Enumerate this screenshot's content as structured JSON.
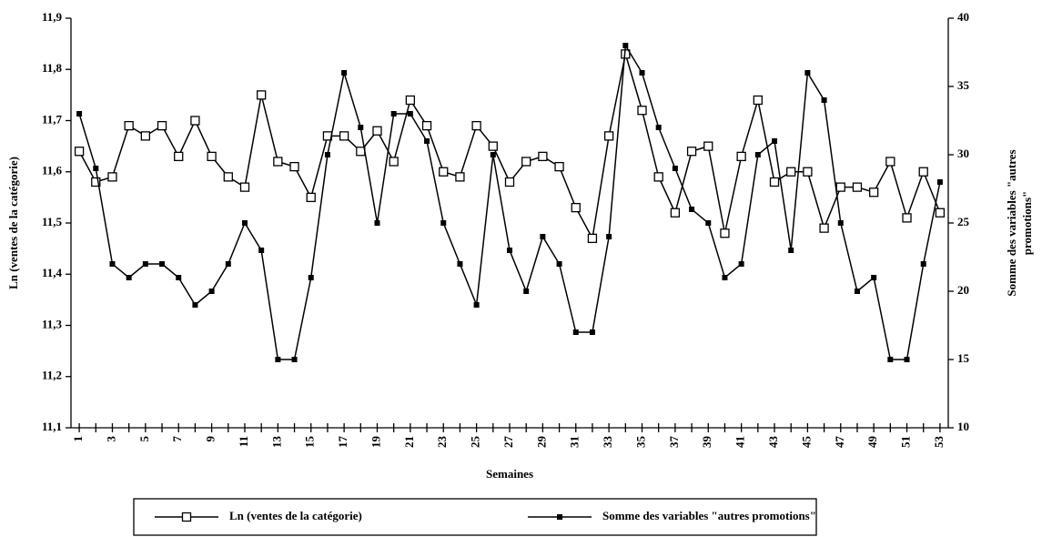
{
  "chart_data": {
    "type": "line",
    "xlabel": "Semaines",
    "ylabel": "Ln (ventes de la catégorie)",
    "y2label": [
      "Somme des variables \"autres",
      "promotions\""
    ],
    "categories": [
      "1",
      null,
      "3",
      null,
      "5",
      null,
      "7",
      null,
      "9",
      null,
      "11",
      null,
      "13",
      null,
      "15",
      null,
      "17",
      null,
      "19",
      null,
      "21",
      null,
      "23",
      null,
      "25",
      null,
      "27",
      null,
      "29",
      null,
      "31",
      null,
      "33",
      null,
      "35",
      null,
      "37",
      null,
      "39",
      null,
      "41",
      null,
      "43",
      null,
      "45",
      null,
      "47",
      null,
      "49",
      null,
      "51",
      null,
      "53"
    ],
    "ylim": [
      11.1,
      11.9
    ],
    "yticks": [
      {
        "value": 11.1,
        "label": "11,1"
      },
      {
        "value": 11.2,
        "label": "11,2"
      },
      {
        "value": 11.3,
        "label": "11,3"
      },
      {
        "value": 11.4,
        "label": "11,4"
      },
      {
        "value": 11.5,
        "label": "11,5"
      },
      {
        "value": 11.6,
        "label": "11,6"
      },
      {
        "value": 11.7,
        "label": "11,7"
      },
      {
        "value": 11.8,
        "label": "11,8"
      },
      {
        "value": 11.9,
        "label": "11,9"
      }
    ],
    "y2lim": [
      10,
      40
    ],
    "y2ticks": [
      10,
      15,
      20,
      25,
      30,
      35,
      40
    ],
    "grid": false,
    "legend": "bottom",
    "series": [
      {
        "name": "Ln (ventes de la catégorie)",
        "color": "#000000",
        "marker": "open-square",
        "values": [
          11.64,
          11.58,
          11.59,
          11.69,
          11.67,
          11.69,
          11.63,
          11.7,
          11.63,
          11.59,
          11.57,
          11.75,
          11.62,
          11.61,
          11.55,
          11.67,
          11.67,
          11.64,
          11.68,
          11.62,
          11.74,
          11.69,
          11.6,
          11.59,
          11.69,
          11.65,
          11.58,
          11.62,
          11.63,
          11.61,
          11.53,
          11.47,
          11.67,
          11.83,
          11.72,
          11.59,
          11.52,
          11.64,
          11.65,
          11.48,
          11.63,
          11.74,
          11.58,
          11.6,
          11.6,
          11.49,
          11.57,
          11.57,
          11.56,
          11.62,
          11.51,
          11.6,
          11.52
        ]
      },
      {
        "name": "Somme des variables \"autres promotions\"",
        "color": "#000000",
        "marker": "filled-square",
        "axis": "y2",
        "values": [
          33,
          29,
          22,
          21,
          22,
          22,
          21,
          19,
          20,
          22,
          25,
          23,
          15,
          15,
          21,
          30,
          36,
          32,
          25,
          33,
          33,
          31,
          25,
          22,
          19,
          30,
          23,
          20,
          24,
          22,
          17,
          17,
          24,
          38,
          36,
          32,
          29,
          26,
          25,
          21,
          22,
          30,
          31,
          23,
          36,
          34,
          25,
          20,
          21,
          15,
          15,
          22,
          28
        ]
      }
    ]
  }
}
